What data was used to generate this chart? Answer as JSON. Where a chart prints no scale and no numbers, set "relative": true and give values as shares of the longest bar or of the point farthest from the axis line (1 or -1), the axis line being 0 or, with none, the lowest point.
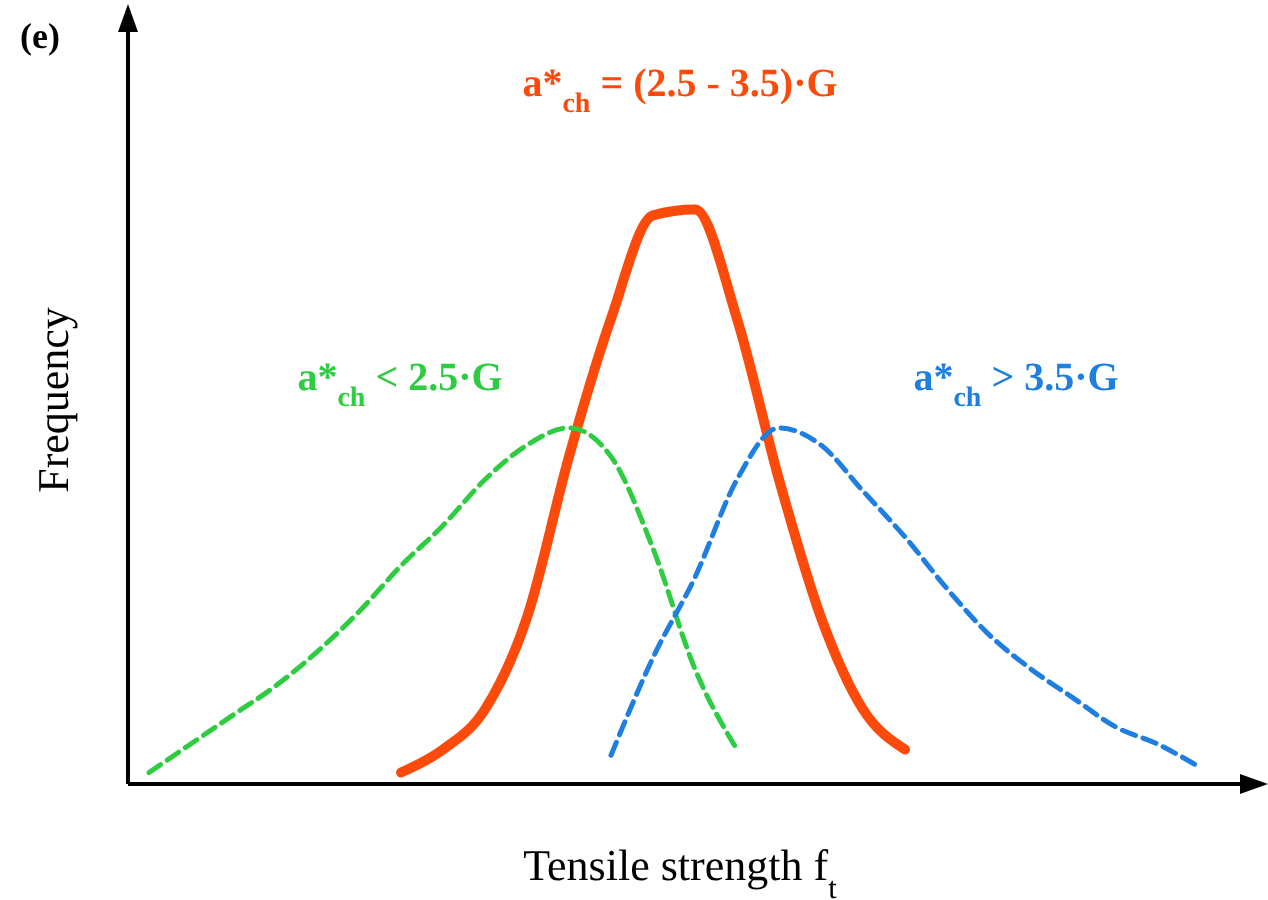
{
  "chart_data": {
    "type": "line",
    "relative": true,
    "xlabel": "Tensile strength f$_{t}$",
    "ylabel": "Frequency",
    "annotations": [
      "(e)"
    ],
    "marker": "none",
    "categories": [
      null,
      null,
      null,
      null,
      null,
      null,
      null,
      null,
      null,
      null,
      null,
      null,
      null,
      null,
      null,
      null,
      null,
      null,
      null,
      null,
      null,
      null,
      null,
      null,
      null,
      null
    ],
    "series": [
      {
        "name": "a*$_{ch}$ = (2.5 - 3.5)·G",
        "color": "#fc4a0a",
        "line_style": "solid",
        "values": [
          null,
          null,
          null,
          null,
          null,
          null,
          0.02,
          0.06,
          0.13,
          0.29,
          0.57,
          0.81,
          0.99,
          1,
          0.81,
          0.53,
          0.29,
          0.13,
          0.06,
          null,
          null,
          null,
          null,
          null,
          null,
          null
        ]
      },
      {
        "name": "a*$_{ch}$ < 2.5·G",
        "color": "#2ecc40",
        "line_style": "dashed",
        "values": [
          0.02,
          0.07,
          0.12,
          0.17,
          0.23,
          0.3,
          0.38,
          0.45,
          0.53,
          0.59,
          0.62,
          0.57,
          0.41,
          0.2,
          0.06,
          null,
          null,
          null,
          null,
          null,
          null,
          null,
          null,
          null,
          null,
          null
        ]
      },
      {
        "name": "a*$_{ch}$ > 3.5·G",
        "color": "#1f7fe0",
        "line_style": "dashed",
        "values": [
          null,
          null,
          null,
          null,
          null,
          null,
          null,
          null,
          null,
          null,
          null,
          0.05,
          0.22,
          0.36,
          0.53,
          0.62,
          0.59,
          0.51,
          0.43,
          0.34,
          0.26,
          0.2,
          0.15,
          0.1,
          0.07,
          0.03
        ]
      }
    ]
  }
}
